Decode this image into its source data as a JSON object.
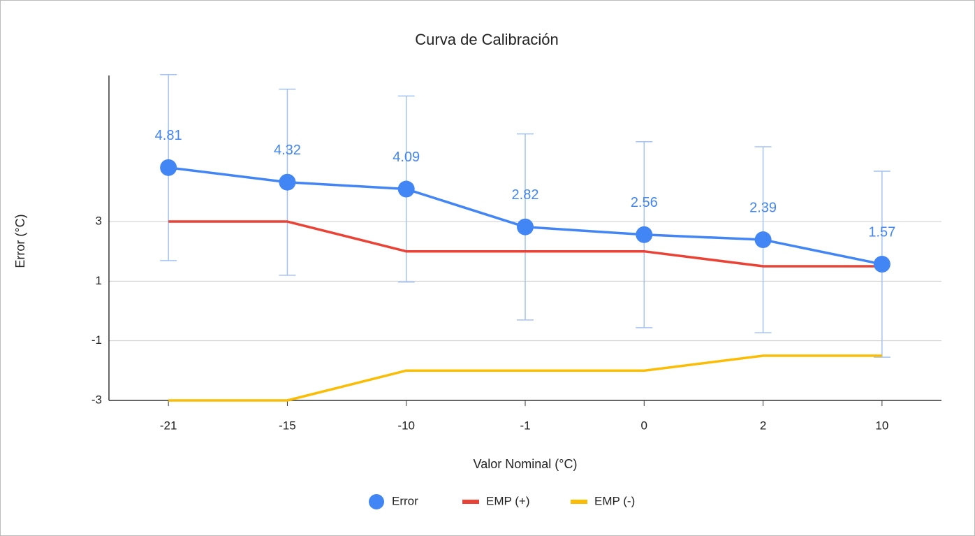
{
  "chart_data": {
    "type": "line",
    "title": "Curva de Calibración",
    "x_label": "Valor  Nominal (°C)",
    "y_label": "Error (°C)",
    "categories": [
      "-21",
      "-15",
      "-10",
      "-1",
      "0",
      "2",
      "10"
    ],
    "series": [
      {
        "name": "Error",
        "color": "#4285f4",
        "values": [
          4.81,
          4.32,
          4.09,
          2.82,
          2.56,
          2.39,
          1.57
        ],
        "errors": [
          3.12,
          3.12,
          3.12,
          3.12,
          3.12,
          3.12,
          3.12
        ],
        "error_color": "#a4c2f4",
        "marker": "circle"
      },
      {
        "name": "EMP (+)",
        "color": "#ea4335",
        "values": [
          3,
          3,
          2,
          2,
          2,
          1.5,
          1.5
        ]
      },
      {
        "name": "EMP (-)",
        "color": "#fbbc04",
        "values": [
          -3,
          -3,
          -2,
          -2,
          -2,
          -1.5,
          -1.5
        ]
      }
    ],
    "ylim": [
      -3,
      7.9
    ],
    "yticks": [
      -3,
      -1,
      1,
      3
    ],
    "grid": true,
    "legend": "bottom"
  }
}
